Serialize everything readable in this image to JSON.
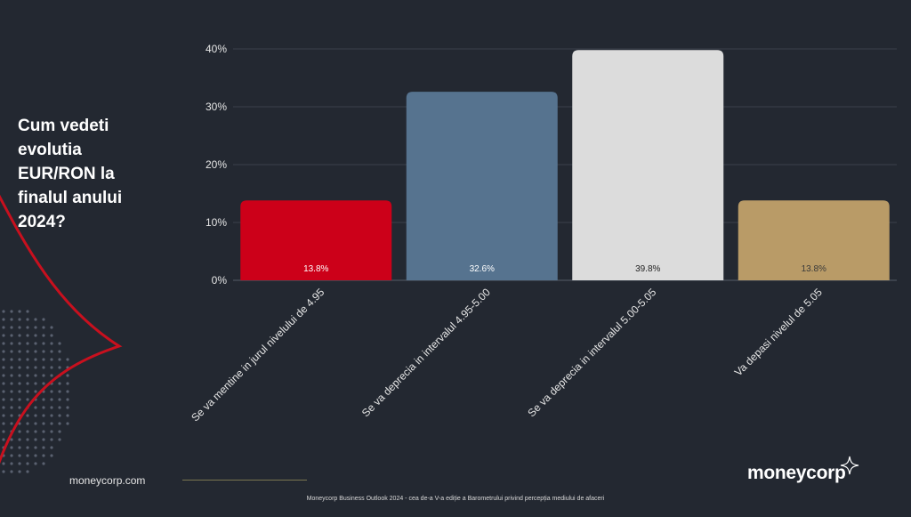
{
  "question": "Cum vedeti evolutia EUR/RON la finalul anului 2024?",
  "footer": {
    "site": "moneycorp.com",
    "logo": "moneycorp",
    "note": "Moneycorp Business Outlook 2024 - cea de-a V-a ediție a Barometrului privind percepția mediului de afaceri"
  },
  "chart_data": {
    "type": "bar",
    "categories": [
      "Se va mentine in jurul nivelului de 4.95",
      "Se va deprecia in intervalul 4.95-5.00",
      "Se va deprecia in intervalul 5.00-5.05",
      "Va depasi nivelul de 5.05"
    ],
    "values": [
      13.8,
      32.6,
      39.8,
      13.8
    ],
    "data_labels": [
      "13.8%",
      "32.6%",
      "39.8%",
      "13.8%"
    ],
    "bar_colors": [
      "#cc0019",
      "#56738f",
      "#dcdcdc",
      "#b99b67"
    ],
    "label_colors": [
      "#ffffff",
      "#ffffff",
      "#222222",
      "#3a3a3a"
    ],
    "ylim": [
      0,
      40
    ],
    "yticks": [
      "0%",
      "10%",
      "20%",
      "30%",
      "40%"
    ],
    "grid": true
  }
}
